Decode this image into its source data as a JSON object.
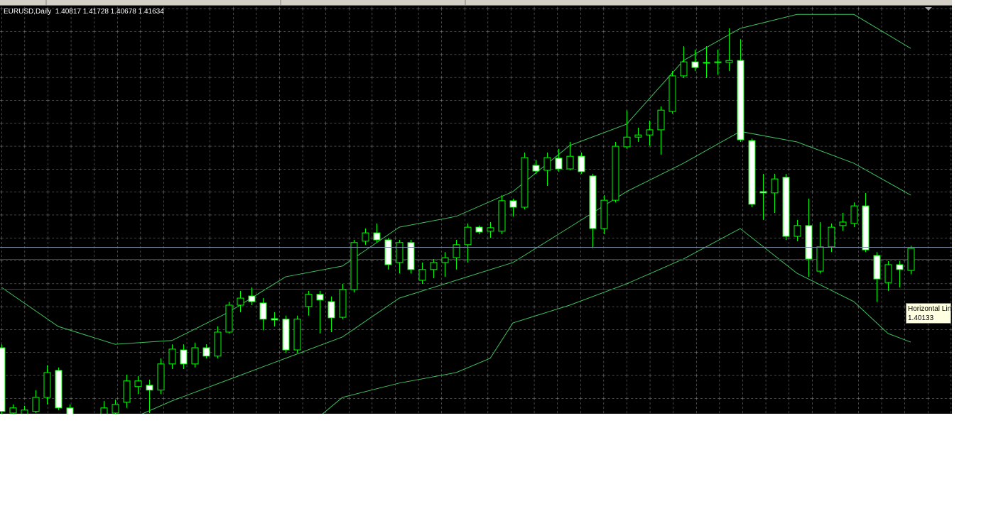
{
  "chart_data": {
    "type": "candlestick",
    "symbol": "EURUSD,Daily",
    "ylim": [
      1.3553,
      1.5058
    ],
    "candle_color": "#00ff00",
    "bear_body_color": "#ffffff",
    "bull_body_color": "#000000",
    "open": [
      1.3795,
      1.3553,
      1.3532,
      1.3559,
      1.3611,
      1.3711,
      1.3572,
      1.3506,
      1.3467,
      1.3506,
      1.3553,
      1.3593,
      1.3651,
      1.3656,
      1.3638,
      1.3735,
      1.3787,
      1.3735,
      1.3795,
      1.3764,
      1.3853,
      1.3953,
      1.3987,
      1.3961,
      1.3903,
      1.3901,
      1.3787,
      1.3948,
      1.3993,
      1.3966,
      1.3908,
      1.4011,
      1.419,
      1.4221,
      1.4195,
      1.4111,
      1.4185,
      1.4045,
      1.4085,
      1.4111,
      1.4129,
      1.4177,
      1.4242,
      1.4227,
      1.4227,
      1.434,
      1.4316,
      1.4471,
      1.4453,
      1.4498,
      1.4458,
      1.4505,
      1.4432,
      1.4237,
      1.4342,
      1.454,
      1.4576,
      1.4584,
      1.4603,
      1.4671,
      1.4803,
      1.4855,
      1.4853,
      1.4853,
      1.4853,
      1.486,
      1.4563,
      1.4374,
      1.4369,
      1.4427,
      1.4208,
      1.4248,
      1.4079,
      1.4169,
      1.4248,
      1.4256,
      1.4321,
      1.4137,
      1.4037,
      1.4103,
      1.40817
    ],
    "high": [
      1.3808,
      1.3585,
      1.358,
      1.3638,
      1.373,
      1.3722,
      1.3585,
      1.3519,
      1.3519,
      1.3598,
      1.3603,
      1.3695,
      1.369,
      1.3677,
      1.3756,
      1.3808,
      1.3808,
      1.3814,
      1.3808,
      1.3874,
      1.3966,
      1.4006,
      1.4019,
      1.3979,
      1.3927,
      1.3914,
      1.3914,
      1.4006,
      1.4006,
      1.3985,
      1.4032,
      1.4195,
      1.4237,
      1.4256,
      1.4203,
      1.4195,
      1.4195,
      1.4111,
      1.4124,
      1.415,
      1.4195,
      1.4256,
      1.4248,
      1.4261,
      1.4361,
      1.4348,
      1.4519,
      1.4492,
      1.4519,
      1.4532,
      1.4558,
      1.4519,
      1.444,
      1.4361,
      1.4558,
      1.4676,
      1.4611,
      1.4637,
      1.469,
      1.4821,
      1.4913,
      1.49,
      1.4913,
      1.49,
      1.4979,
      1.4939,
      1.4571,
      1.444,
      1.444,
      1.444,
      1.4269,
      1.4348,
      1.4261,
      1.4256,
      1.4295,
      1.4334,
      1.4369,
      1.415,
      1.4116,
      1.4116,
      1.41728
    ],
    "low": [
      1.3532,
      1.3532,
      1.3519,
      1.3553,
      1.3585,
      1.3564,
      1.3493,
      1.3453,
      1.3453,
      1.3493,
      1.3532,
      1.3572,
      1.3624,
      1.3553,
      1.3624,
      1.3716,
      1.3716,
      1.3722,
      1.3756,
      1.3756,
      1.3848,
      1.3927,
      1.3953,
      1.3861,
      1.3874,
      1.3777,
      1.3777,
      1.3914,
      1.3848,
      1.3853,
      1.3901,
      1.4,
      1.4177,
      1.4185,
      1.4085,
      1.4071,
      1.4071,
      1.4032,
      1.4053,
      1.4058,
      1.4085,
      1.4111,
      1.4216,
      1.4203,
      1.4216,
      1.4282,
      1.4308,
      1.444,
      1.4395,
      1.4448,
      1.4453,
      1.444,
      1.4164,
      1.4216,
      1.4334,
      1.4532,
      1.4558,
      1.4545,
      1.4511,
      1.4663,
      1.4795,
      1.4821,
      1.4795,
      1.4808,
      1.4821,
      1.4558,
      1.4316,
      1.4269,
      1.4295,
      1.4195,
      1.419,
      1.4058,
      1.4071,
      1.415,
      1.4229,
      1.4242,
      1.415,
      1.3966,
      1.4006,
      1.4019,
      1.40678
    ],
    "close": [
      1.3559,
      1.3572,
      1.3564,
      1.3611,
      1.3703,
      1.3572,
      1.3506,
      1.3467,
      1.3506,
      1.3572,
      1.3585,
      1.3672,
      1.3672,
      1.3638,
      1.3735,
      1.379,
      1.3735,
      1.3795,
      1.3764,
      1.3853,
      1.3953,
      1.3979,
      1.3966,
      1.3901,
      1.3898,
      1.3787,
      1.3901,
      1.3993,
      1.3972,
      1.3906,
      1.4011,
      1.4185,
      1.4221,
      1.4195,
      1.4103,
      1.4185,
      1.4085,
      1.4085,
      1.4111,
      1.4129,
      1.4177,
      1.4242,
      1.4224,
      1.424,
      1.434,
      1.4316,
      1.45,
      1.445,
      1.45,
      1.4458,
      1.4505,
      1.4448,
      1.4237,
      1.4342,
      1.4542,
      1.4576,
      1.4584,
      1.4603,
      1.4676,
      1.4803,
      1.4855,
      1.4834,
      1.4853,
      1.4855,
      1.486,
      1.4566,
      1.4327,
      1.4369,
      1.4421,
      1.4208,
      1.4248,
      1.4124,
      1.4169,
      1.4242,
      1.4261,
      1.4321,
      1.4158,
      1.405,
      1.4103,
      1.4085,
      1.41634
    ],
    "bands": [
      {
        "color": "#3fbf5f",
        "x": [
          0,
          5,
          10,
          15,
          20,
          25,
          30,
          35,
          40,
          45,
          50,
          55,
          60,
          65,
          70,
          75,
          80
        ],
        "values": [
          1.4019,
          1.3874,
          1.3808,
          1.3822,
          1.3927,
          1.4058,
          1.4098,
          1.4242,
          1.4282,
          1.4374,
          1.4545,
          1.4624,
          1.486,
          1.4979,
          1.5031,
          1.5031,
          1.4905
        ]
      },
      {
        "color": "#3fbf5f",
        "x": [
          10,
          15,
          20,
          25,
          30,
          35,
          40,
          45,
          50,
          55,
          60,
          65,
          70,
          75,
          80
        ],
        "values": [
          1.3506,
          1.3598,
          1.3677,
          1.3756,
          1.3835,
          1.3979,
          1.4045,
          1.4111,
          1.4242,
          1.4374,
          1.4479,
          1.4597,
          1.4558,
          1.4479,
          1.4361
        ]
      },
      {
        "color": "#3fbf5f",
        "x": [
          27,
          30,
          35,
          40,
          43,
          45,
          50,
          55,
          60,
          65,
          70,
          75,
          78,
          80
        ],
        "values": [
          1.3506,
          1.3611,
          1.3664,
          1.3703,
          1.3756,
          1.3887,
          1.3953,
          1.4032,
          1.4124,
          1.4237,
          1.4071,
          1.3966,
          1.3848,
          1.3816
        ]
      }
    ],
    "horizontal_lines": [
      {
        "value": 1.4124,
        "color": "#e00000"
      },
      {
        "value": 1.40133,
        "color": "#e00000",
        "label": "Horizontal Lin"
      }
    ],
    "bid_line_color": "#7a8aa0"
  }
}
